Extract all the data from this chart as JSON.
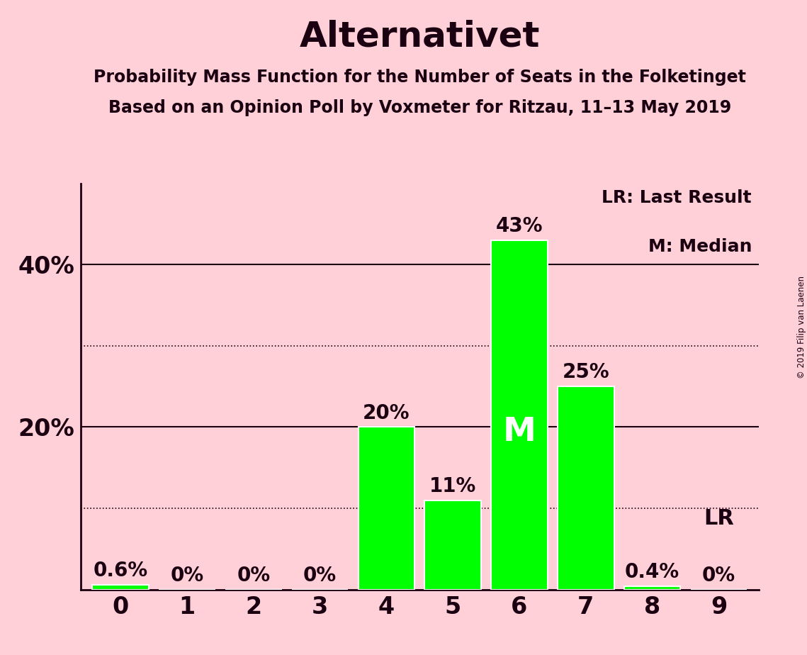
{
  "title": "Alternativet",
  "subtitle1": "Probability Mass Function for the Number of Seats in the Folketinget",
  "subtitle2": "Based on an Opinion Poll by Voxmeter for Ritzau, 11–13 May 2019",
  "copyright": "© 2019 Filip van Laenen",
  "categories": [
    0,
    1,
    2,
    3,
    4,
    5,
    6,
    7,
    8,
    9
  ],
  "values": [
    0.6,
    0.0,
    0.0,
    0.0,
    20.0,
    11.0,
    43.0,
    25.0,
    0.4,
    0.0
  ],
  "bar_color": "#00FF00",
  "background_color": "#FFD0D8",
  "text_color": "#1a0010",
  "ylabel_ticks": [
    20,
    40
  ],
  "dotted_lines": [
    10,
    30
  ],
  "solid_lines": [
    20,
    40
  ],
  "ylim": [
    0,
    50
  ],
  "median_seat": 6,
  "lr_seat": 9,
  "legend_lr": "LR: Last Result",
  "legend_m": "M: Median"
}
